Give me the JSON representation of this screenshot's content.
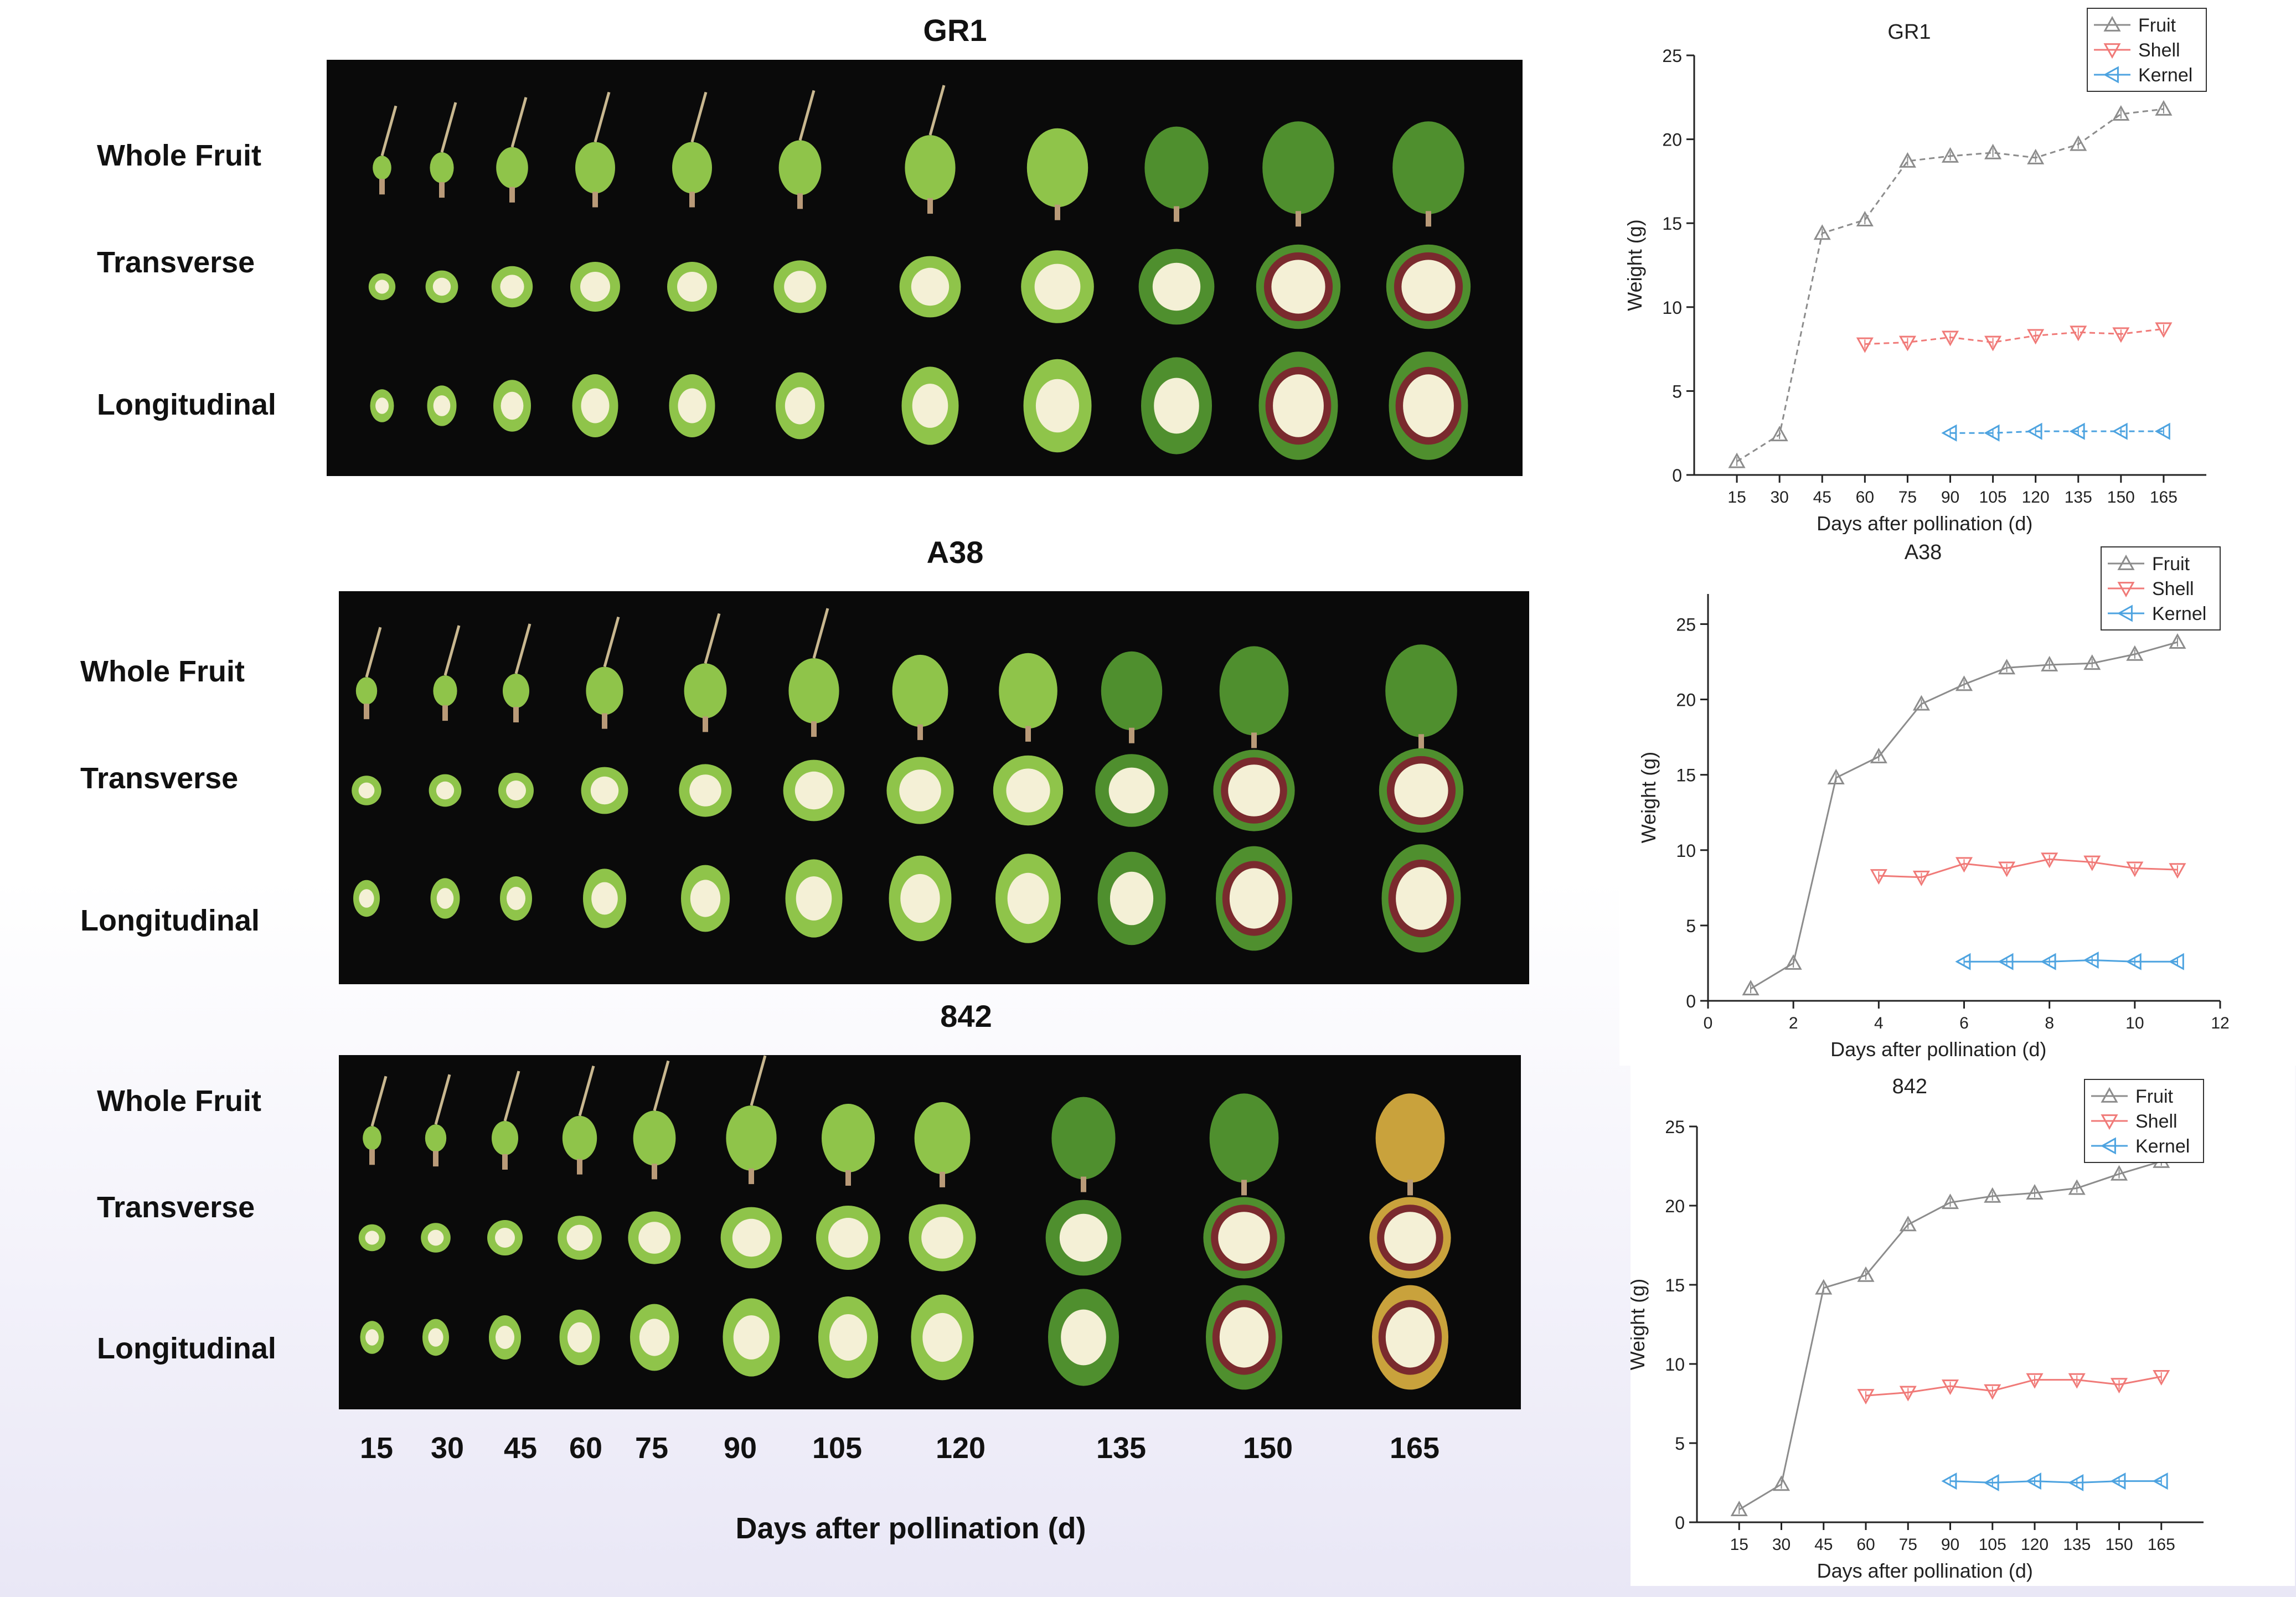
{
  "figure": {
    "row_labels": [
      "Whole Fruit",
      "Transverse",
      "Longitudinal"
    ],
    "panels": [
      {
        "title": "GR1"
      },
      {
        "title": "A38"
      },
      {
        "title": "842"
      }
    ],
    "day_labels": [
      "15",
      "30",
      "45",
      "60",
      "75",
      "90",
      "105",
      "120",
      "135",
      "150",
      "165"
    ],
    "bottom_axis_title": "Days after pollination (d)"
  },
  "colors": {
    "fruit": "#8c8c8c",
    "shell": "#f07a78",
    "kernel": "#4da3e0",
    "photo_bg": "#0a0a0a",
    "green_fruit": "#8fc44a",
    "dark_green_fruit": "#4f8f2e",
    "flesh": "#f4f0d6",
    "shell_brown": "#7a2a2e"
  },
  "photos": {
    "shapes_per_row": 11,
    "row_kinds": [
      "whole",
      "transverse",
      "longitudinal"
    ]
  },
  "chart_data": [
    {
      "type": "line",
      "title": "GR1",
      "xlabel": "Days after pollination (d)",
      "ylabel": "Weight (g)",
      "xticks": [
        "15",
        "30",
        "45",
        "60",
        "75",
        "90",
        "105",
        "120",
        "135",
        "150",
        "165"
      ],
      "xlim": [
        0,
        180
      ],
      "ylim": [
        0,
        25
      ],
      "yticks": [
        0,
        5,
        10,
        15,
        20,
        25
      ],
      "legend": "top-right",
      "series": [
        {
          "name": "Fruit",
          "marker": "triangle-up",
          "color": "#8c8c8c",
          "dash": "dash",
          "x": [
            15,
            30,
            45,
            60,
            75,
            90,
            105,
            120,
            135,
            150,
            165
          ],
          "y": [
            0.8,
            2.4,
            14.4,
            15.2,
            18.7,
            19.0,
            19.2,
            18.9,
            19.7,
            21.5,
            21.8
          ]
        },
        {
          "name": "Shell",
          "marker": "triangle-down",
          "color": "#f07a78",
          "dash": "dash",
          "x": [
            60,
            75,
            90,
            105,
            120,
            135,
            150,
            165
          ],
          "y": [
            7.8,
            7.9,
            8.2,
            7.9,
            8.3,
            8.5,
            8.4,
            8.7
          ]
        },
        {
          "name": "Kernel",
          "marker": "triangle-left",
          "color": "#4da3e0",
          "dash": "dash",
          "x": [
            90,
            105,
            120,
            135,
            150,
            165
          ],
          "y": [
            2.5,
            2.5,
            2.6,
            2.6,
            2.6,
            2.6
          ]
        }
      ]
    },
    {
      "type": "line",
      "title": "A38",
      "xlabel": "Days after pollination (d)",
      "ylabel": "Weight (g)",
      "xticks": [
        "0",
        "2",
        "4",
        "6",
        "8",
        "10",
        "12"
      ],
      "xlim": [
        0,
        12
      ],
      "ylim": [
        0,
        27
      ],
      "yticks": [
        0,
        5,
        10,
        15,
        20,
        25
      ],
      "legend": "top-right",
      "series": [
        {
          "name": "Fruit",
          "marker": "triangle-up",
          "color": "#8c8c8c",
          "dash": "solid",
          "x": [
            1,
            2,
            3,
            4,
            5,
            6,
            7,
            8,
            9,
            10,
            11
          ],
          "y": [
            0.8,
            2.5,
            14.8,
            16.2,
            19.7,
            21.0,
            22.1,
            22.3,
            22.4,
            23.0,
            23.8
          ]
        },
        {
          "name": "Shell",
          "marker": "triangle-down",
          "color": "#f07a78",
          "dash": "solid",
          "x": [
            4,
            5,
            6,
            7,
            8,
            9,
            10,
            11
          ],
          "y": [
            8.3,
            8.2,
            9.1,
            8.8,
            9.4,
            9.2,
            8.8,
            8.7
          ]
        },
        {
          "name": "Kernel",
          "marker": "triangle-left",
          "color": "#4da3e0",
          "dash": "solid",
          "x": [
            6,
            7,
            8,
            9,
            10,
            11
          ],
          "y": [
            2.6,
            2.6,
            2.6,
            2.7,
            2.6,
            2.6
          ]
        }
      ]
    },
    {
      "type": "line",
      "title": "842",
      "xlabel": "Days after pollination (d)",
      "ylabel": "Weight (g)",
      "xticks": [
        "15",
        "30",
        "45",
        "60",
        "75",
        "90",
        "105",
        "120",
        "135",
        "150",
        "165"
      ],
      "xlim": [
        0,
        180
      ],
      "ylim": [
        0,
        25
      ],
      "yticks": [
        0,
        5,
        10,
        15,
        20,
        25
      ],
      "legend": "top-right",
      "series": [
        {
          "name": "Fruit",
          "marker": "triangle-up",
          "color": "#8c8c8c",
          "dash": "solid",
          "x": [
            15,
            30,
            45,
            60,
            75,
            90,
            105,
            120,
            135,
            150,
            165
          ],
          "y": [
            0.8,
            2.4,
            14.8,
            15.6,
            18.8,
            20.2,
            20.6,
            20.8,
            21.1,
            22.0,
            22.8
          ]
        },
        {
          "name": "Shell",
          "marker": "triangle-down",
          "color": "#f07a78",
          "dash": "solid",
          "x": [
            60,
            75,
            90,
            105,
            120,
            135,
            150,
            165
          ],
          "y": [
            8.0,
            8.2,
            8.6,
            8.3,
            9.0,
            9.0,
            8.7,
            9.2
          ]
        },
        {
          "name": "Kernel",
          "marker": "triangle-left",
          "color": "#4da3e0",
          "dash": "solid",
          "x": [
            90,
            105,
            120,
            135,
            150,
            165
          ],
          "y": [
            2.6,
            2.5,
            2.6,
            2.5,
            2.6,
            2.6
          ]
        }
      ]
    }
  ]
}
